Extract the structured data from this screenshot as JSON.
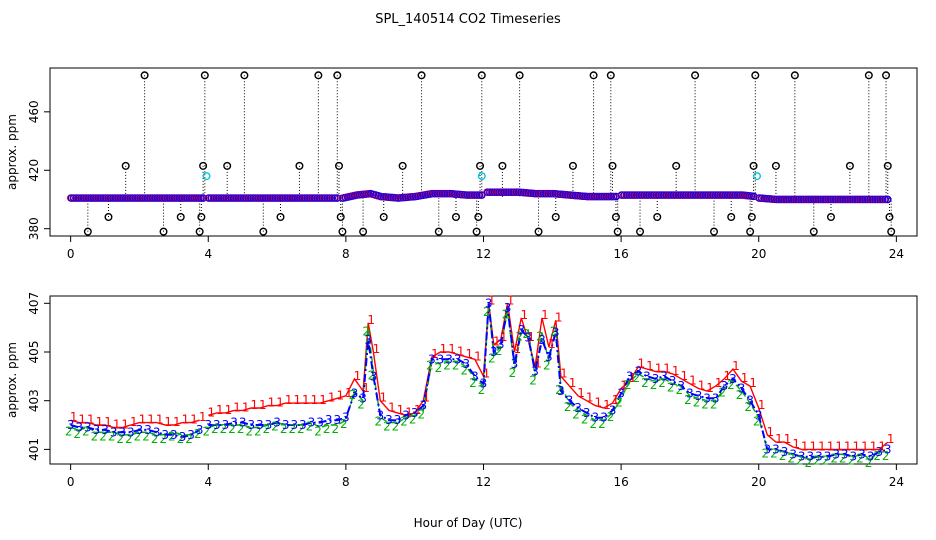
{
  "title": "SPL_140514  CO2 Timeseries",
  "xlabel": "Hour of Day (UTC)",
  "colors": {
    "marker_black": "#000000",
    "marker_cyan": "#00c8d8",
    "s1": "#ff0000",
    "s2": "#00b000",
    "s3": "#0000ff",
    "frame": "#000000"
  },
  "chart_data": [
    {
      "type": "scatter",
      "name": "top-panel",
      "ylabel": "approx. ppm",
      "xlim": [
        -0.6,
        24.6
      ],
      "ylim": [
        375,
        490
      ],
      "xticks": [
        0,
        4,
        8,
        12,
        16,
        20,
        24
      ],
      "yticks": [
        380,
        420,
        460
      ],
      "baseline_segments": [
        {
          "x": [
            0.0,
            0.5,
            1.0,
            1.5,
            2.0,
            2.5,
            3.0,
            3.5,
            3.9
          ],
          "y": [
            401,
            401,
            401,
            401,
            401,
            401,
            401,
            401,
            401
          ]
        },
        {
          "x": [
            4.0,
            5.0,
            6.0,
            7.0,
            7.8
          ],
          "y": [
            401,
            401,
            401,
            401,
            401
          ]
        },
        {
          "x": [
            7.9,
            8.3,
            8.7,
            9.0,
            9.5,
            10.0,
            10.5,
            11.0,
            11.5,
            12.0
          ],
          "y": [
            401,
            403,
            404,
            402,
            401,
            402,
            404,
            404,
            403,
            403
          ]
        },
        {
          "x": [
            12.1,
            12.5,
            13.0,
            13.5,
            14.0,
            14.5,
            15.0,
            15.9
          ],
          "y": [
            405,
            405,
            405,
            404,
            404,
            403,
            402,
            402
          ]
        },
        {
          "x": [
            16.0,
            16.5,
            17.0,
            17.5,
            18.0,
            18.5,
            19.0,
            19.5,
            19.9
          ],
          "y": [
            403,
            403,
            403,
            403,
            403,
            403,
            403,
            403,
            402
          ]
        },
        {
          "x": [
            20.0,
            20.5,
            21.0,
            22.0,
            23.0,
            23.8
          ],
          "y": [
            401,
            400,
            400,
            400,
            400,
            400
          ]
        }
      ],
      "outliers": [
        {
          "x": 0.5,
          "y": 378
        },
        {
          "x": 1.1,
          "y": 388
        },
        {
          "x": 1.6,
          "y": 423
        },
        {
          "x": 2.15,
          "y": 485
        },
        {
          "x": 2.7,
          "y": 378
        },
        {
          "x": 3.2,
          "y": 388
        },
        {
          "x": 3.75,
          "y": 378
        },
        {
          "x": 3.8,
          "y": 388
        },
        {
          "x": 3.85,
          "y": 423
        },
        {
          "x": 3.9,
          "y": 485
        },
        {
          "x": 4.55,
          "y": 423
        },
        {
          "x": 5.05,
          "y": 485
        },
        {
          "x": 5.6,
          "y": 378
        },
        {
          "x": 6.1,
          "y": 388
        },
        {
          "x": 6.65,
          "y": 423
        },
        {
          "x": 7.2,
          "y": 485
        },
        {
          "x": 7.75,
          "y": 485
        },
        {
          "x": 7.8,
          "y": 423
        },
        {
          "x": 7.85,
          "y": 388
        },
        {
          "x": 7.9,
          "y": 378
        },
        {
          "x": 8.5,
          "y": 378
        },
        {
          "x": 9.1,
          "y": 388
        },
        {
          "x": 9.65,
          "y": 423
        },
        {
          "x": 10.2,
          "y": 485
        },
        {
          "x": 10.7,
          "y": 378
        },
        {
          "x": 11.2,
          "y": 388
        },
        {
          "x": 11.8,
          "y": 378
        },
        {
          "x": 11.85,
          "y": 388
        },
        {
          "x": 11.9,
          "y": 423
        },
        {
          "x": 11.95,
          "y": 485
        },
        {
          "x": 12.55,
          "y": 423
        },
        {
          "x": 13.05,
          "y": 485
        },
        {
          "x": 13.6,
          "y": 378
        },
        {
          "x": 14.1,
          "y": 388
        },
        {
          "x": 14.6,
          "y": 423
        },
        {
          "x": 15.2,
          "y": 485
        },
        {
          "x": 15.7,
          "y": 485
        },
        {
          "x": 15.75,
          "y": 423
        },
        {
          "x": 15.85,
          "y": 388
        },
        {
          "x": 15.9,
          "y": 378
        },
        {
          "x": 16.55,
          "y": 378
        },
        {
          "x": 17.05,
          "y": 388
        },
        {
          "x": 17.6,
          "y": 423
        },
        {
          "x": 18.15,
          "y": 485
        },
        {
          "x": 18.7,
          "y": 378
        },
        {
          "x": 19.2,
          "y": 388
        },
        {
          "x": 19.75,
          "y": 378
        },
        {
          "x": 19.8,
          "y": 388
        },
        {
          "x": 19.85,
          "y": 423
        },
        {
          "x": 19.9,
          "y": 485
        },
        {
          "x": 20.5,
          "y": 423
        },
        {
          "x": 21.05,
          "y": 485
        },
        {
          "x": 21.6,
          "y": 378
        },
        {
          "x": 22.1,
          "y": 388
        },
        {
          "x": 22.65,
          "y": 423
        },
        {
          "x": 23.2,
          "y": 485
        },
        {
          "x": 23.7,
          "y": 485
        },
        {
          "x": 23.75,
          "y": 423
        },
        {
          "x": 23.8,
          "y": 388
        },
        {
          "x": 23.85,
          "y": 378
        }
      ],
      "cyan_points": [
        {
          "x": 3.95,
          "y": 416
        },
        {
          "x": 11.95,
          "y": 416
        },
        {
          "x": 19.95,
          "y": 416
        }
      ]
    },
    {
      "type": "line",
      "name": "bottom-panel",
      "ylabel": "approx. ppm",
      "xlim": [
        -0.6,
        24.6
      ],
      "ylim": [
        400.4,
        407.3
      ],
      "xticks": [
        0,
        4,
        8,
        12,
        16,
        20,
        24
      ],
      "yticks": [
        401,
        403,
        405,
        407
      ],
      "gap_hours": [
        3.95
      ],
      "x": [
        0.0,
        0.25,
        0.5,
        0.75,
        1.0,
        1.25,
        1.5,
        1.75,
        2.0,
        2.25,
        2.5,
        2.75,
        3.0,
        3.25,
        3.5,
        3.75,
        4.0,
        4.25,
        4.5,
        4.75,
        5.0,
        5.25,
        5.5,
        5.75,
        6.0,
        6.25,
        6.5,
        6.75,
        7.0,
        7.25,
        7.5,
        7.75,
        8.0,
        8.25,
        8.5,
        8.65,
        8.8,
        9.0,
        9.25,
        9.5,
        9.75,
        10.0,
        10.25,
        10.5,
        10.75,
        11.0,
        11.25,
        11.5,
        11.75,
        12.0,
        12.15,
        12.3,
        12.5,
        12.7,
        12.9,
        13.1,
        13.3,
        13.5,
        13.7,
        13.9,
        14.1,
        14.25,
        14.5,
        14.75,
        15.0,
        15.25,
        15.5,
        15.75,
        16.0,
        16.25,
        16.5,
        16.75,
        17.0,
        17.25,
        17.5,
        17.75,
        18.0,
        18.25,
        18.5,
        18.75,
        19.0,
        19.25,
        19.5,
        19.75,
        20.0,
        20.25,
        20.5,
        20.75,
        21.0,
        21.25,
        21.5,
        21.75,
        22.0,
        22.25,
        22.5,
        22.75,
        23.0,
        23.25,
        23.5,
        23.75
      ],
      "series": [
        {
          "name": "1",
          "values": [
            402.2,
            402.1,
            402.1,
            402.0,
            402.0,
            401.9,
            401.9,
            402.0,
            402.1,
            402.1,
            402.1,
            402.0,
            402.0,
            402.1,
            402.1,
            402.2,
            402.4,
            402.5,
            402.5,
            402.6,
            402.6,
            402.7,
            402.7,
            402.8,
            402.8,
            402.9,
            402.9,
            402.9,
            402.9,
            402.9,
            403.0,
            403.1,
            403.2,
            403.9,
            403.4,
            406.2,
            405.0,
            403.0,
            402.6,
            402.5,
            402.4,
            402.5,
            403.0,
            404.8,
            405.0,
            405.0,
            404.9,
            404.8,
            404.7,
            404.0,
            407.0,
            405.3,
            405.5,
            407.0,
            405.0,
            406.4,
            405.5,
            404.4,
            406.4,
            405.2,
            406.3,
            404.0,
            403.6,
            403.2,
            403.0,
            402.8,
            402.7,
            402.9,
            403.5,
            403.8,
            404.4,
            404.3,
            404.2,
            404.2,
            404.1,
            403.9,
            403.7,
            403.5,
            403.4,
            403.6,
            403.9,
            404.3,
            403.8,
            403.6,
            402.7,
            401.6,
            401.3,
            401.3,
            401.1,
            401.0,
            401.0,
            401.0,
            401.0,
            401.0,
            401.0,
            401.0,
            401.0,
            401.0,
            401.0,
            401.3
          ]
        },
        {
          "name": "2",
          "values": [
            401.9,
            401.8,
            401.9,
            401.7,
            401.7,
            401.7,
            401.6,
            401.6,
            401.7,
            401.7,
            401.6,
            401.6,
            401.7,
            401.6,
            401.6,
            401.8,
            401.9,
            402.0,
            402.0,
            402.0,
            402.0,
            401.9,
            401.9,
            402.0,
            402.1,
            402.0,
            402.0,
            402.0,
            402.1,
            401.9,
            402.0,
            402.0,
            402.2,
            403.4,
            403.0,
            406.0,
            404.2,
            402.3,
            402.1,
            402.1,
            402.3,
            402.4,
            402.6,
            404.6,
            404.5,
            404.6,
            404.6,
            404.4,
            403.9,
            403.6,
            406.8,
            404.9,
            405.2,
            406.7,
            404.3,
            405.8,
            405.9,
            404.0,
            405.8,
            404.6,
            406.0,
            403.6,
            402.9,
            402.6,
            402.4,
            402.2,
            402.2,
            402.5,
            403.1,
            403.8,
            404.1,
            403.9,
            403.8,
            403.9,
            403.7,
            403.6,
            403.2,
            403.1,
            403.0,
            403.0,
            403.5,
            403.8,
            403.4,
            402.9,
            402.3,
            401.0,
            401.0,
            400.9,
            400.8,
            400.7,
            400.6,
            400.7,
            400.7,
            400.8,
            400.8,
            400.7,
            400.8,
            400.6,
            400.9,
            400.9
          ]
        },
        {
          "name": "3",
          "values": [
            402.0,
            401.9,
            401.9,
            401.8,
            401.8,
            401.7,
            401.7,
            401.7,
            401.8,
            401.8,
            401.7,
            401.6,
            401.6,
            401.5,
            401.6,
            401.8,
            402.0,
            402.0,
            402.0,
            402.1,
            402.1,
            402.0,
            402.0,
            402.0,
            402.1,
            402.0,
            402.0,
            402.0,
            402.1,
            402.1,
            402.2,
            402.2,
            402.3,
            403.3,
            403.1,
            405.5,
            404.0,
            402.4,
            402.2,
            402.2,
            402.4,
            402.5,
            402.8,
            404.7,
            404.7,
            404.7,
            404.7,
            404.5,
            404.0,
            403.7,
            407.0,
            405.0,
            405.3,
            406.8,
            404.5,
            405.9,
            405.6,
            404.2,
            405.5,
            404.8,
            405.8,
            403.4,
            403.0,
            402.7,
            402.5,
            402.3,
            402.3,
            402.6,
            403.3,
            404.0,
            404.2,
            404.0,
            403.9,
            404.0,
            403.8,
            403.6,
            403.3,
            403.2,
            403.1,
            403.1,
            403.6,
            403.9,
            403.5,
            403.0,
            402.4,
            401.0,
            401.0,
            400.9,
            400.8,
            400.7,
            400.7,
            400.7,
            400.7,
            400.8,
            400.8,
            400.7,
            400.8,
            400.7,
            400.9,
            401.0
          ]
        }
      ]
    }
  ]
}
